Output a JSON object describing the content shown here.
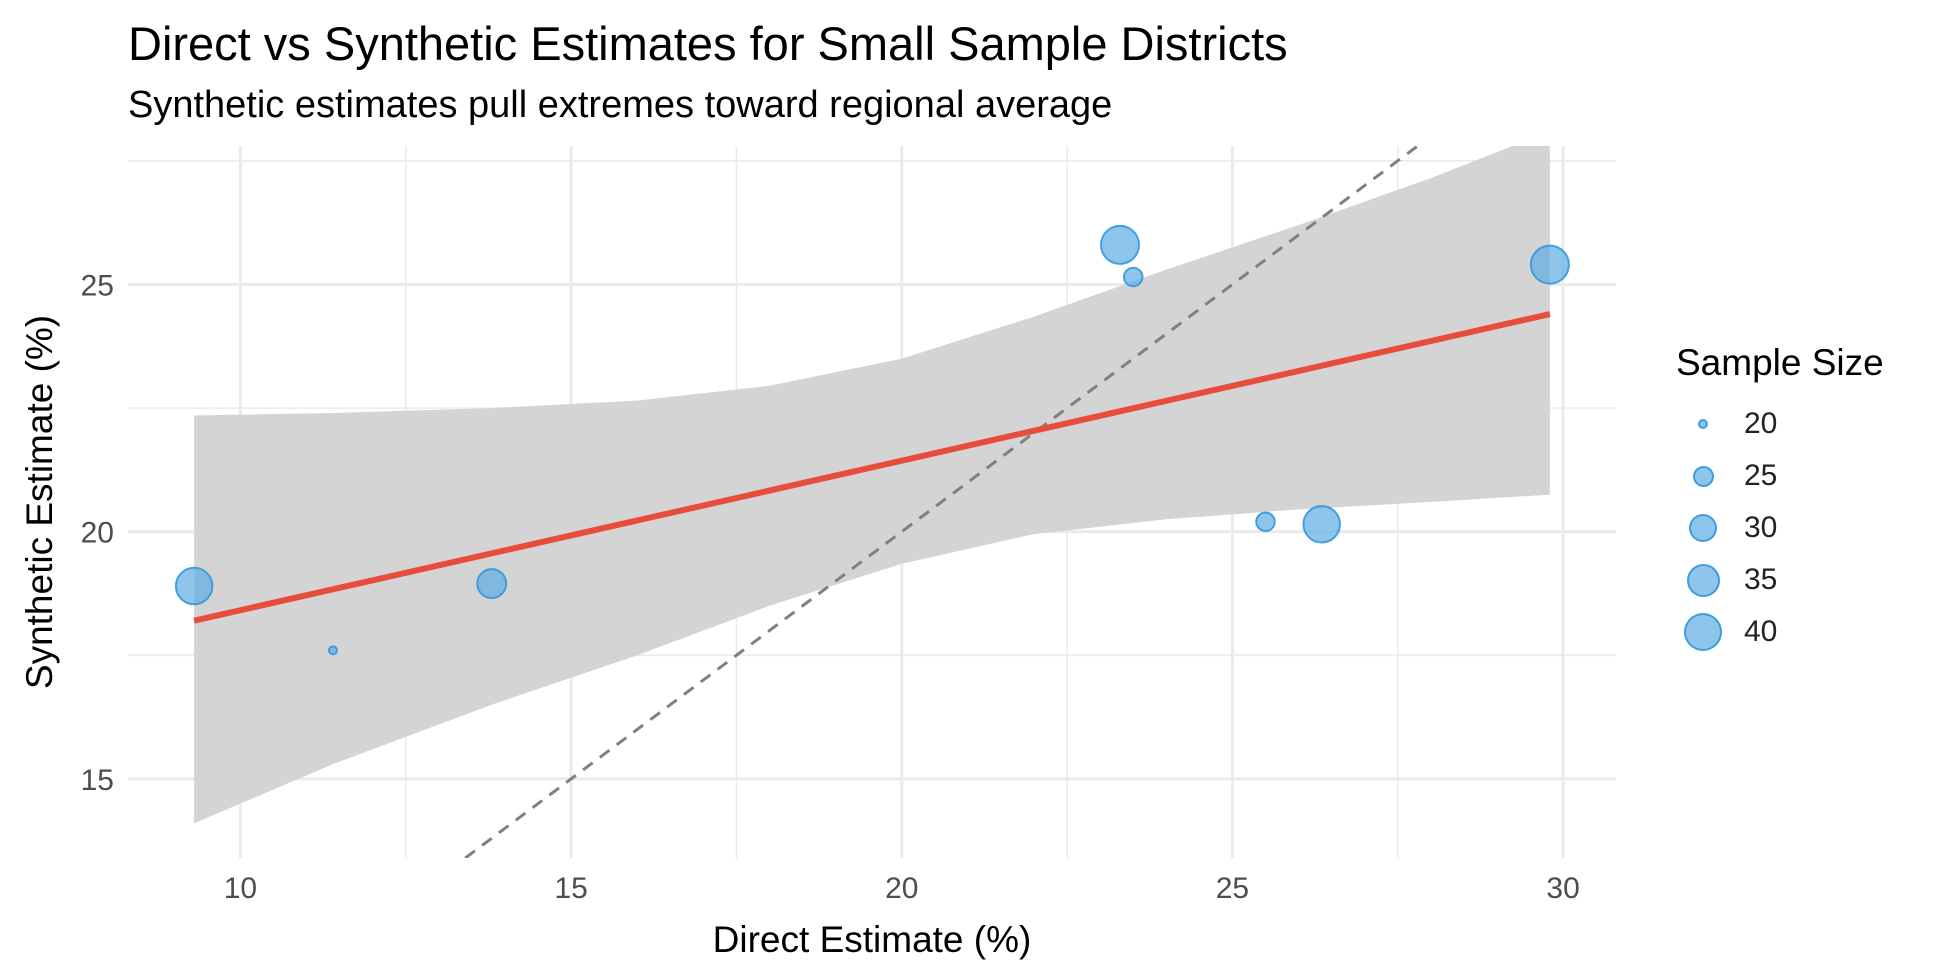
{
  "title": "Direct vs Synthetic Estimates for Small Sample Districts",
  "subtitle": "Synthetic estimates pull extremes toward regional average",
  "colors": {
    "point_fill": "#5DADE2",
    "point_stroke": "#3498DB",
    "fit_line": "#E74C3C",
    "ribbon": "#D4D4D4",
    "identity_line": "#808080",
    "grid": "#EBEBEB"
  },
  "chart_data": {
    "type": "scatter",
    "title": "Direct vs Synthetic Estimates for Small Sample Districts",
    "subtitle": "Synthetic estimates pull extremes toward regional average",
    "xlabel": "Direct Estimate (%)",
    "ylabel": "Synthetic Estimate (%)",
    "xlim": [
      8.3,
      30.8
    ],
    "ylim": [
      13.4,
      27.8
    ],
    "x_ticks": [
      10,
      15,
      20,
      25,
      30
    ],
    "y_ticks": [
      15,
      20,
      25
    ],
    "x_tick_labels": [
      "10",
      "15",
      "20",
      "25",
      "30"
    ],
    "y_tick_labels": [
      "15",
      "20",
      "25"
    ],
    "grid": true,
    "size_legend_title": "Sample Size",
    "legend_position": "right",
    "size_legend": [
      {
        "label": "20",
        "value": 20
      },
      {
        "label": "25",
        "value": 25
      },
      {
        "label": "30",
        "value": 30
      },
      {
        "label": "35",
        "value": 35
      },
      {
        "label": "40",
        "value": 40
      }
    ],
    "points": [
      {
        "x": 9.3,
        "y": 18.9,
        "size": 39
      },
      {
        "x": 11.4,
        "y": 17.6,
        "size": 20
      },
      {
        "x": 13.8,
        "y": 18.95,
        "size": 34
      },
      {
        "x": 23.3,
        "y": 25.8,
        "size": 40
      },
      {
        "x": 23.5,
        "y": 25.15,
        "size": 27
      },
      {
        "x": 25.5,
        "y": 20.2,
        "size": 27
      },
      {
        "x": 26.35,
        "y": 20.15,
        "size": 39
      },
      {
        "x": 29.8,
        "y": 25.4,
        "size": 40
      }
    ],
    "fit_line": {
      "x": [
        9.3,
        29.8
      ],
      "y": [
        18.2,
        24.4
      ]
    },
    "confidence_band": {
      "x": [
        9.3,
        11.4,
        13.8,
        16.0,
        18.0,
        20.0,
        22.0,
        24.0,
        26.0,
        28.0,
        29.8
      ],
      "lower": [
        14.1,
        15.3,
        16.5,
        17.5,
        18.5,
        19.35,
        19.95,
        20.25,
        20.45,
        20.6,
        20.75
      ],
      "upper": [
        22.35,
        22.4,
        22.5,
        22.65,
        22.95,
        23.5,
        24.35,
        25.3,
        26.2,
        27.15,
        28.1
      ]
    },
    "identity_line": {
      "x": [
        13.4,
        28.8
      ],
      "y": [
        13.4,
        28.8
      ]
    }
  }
}
